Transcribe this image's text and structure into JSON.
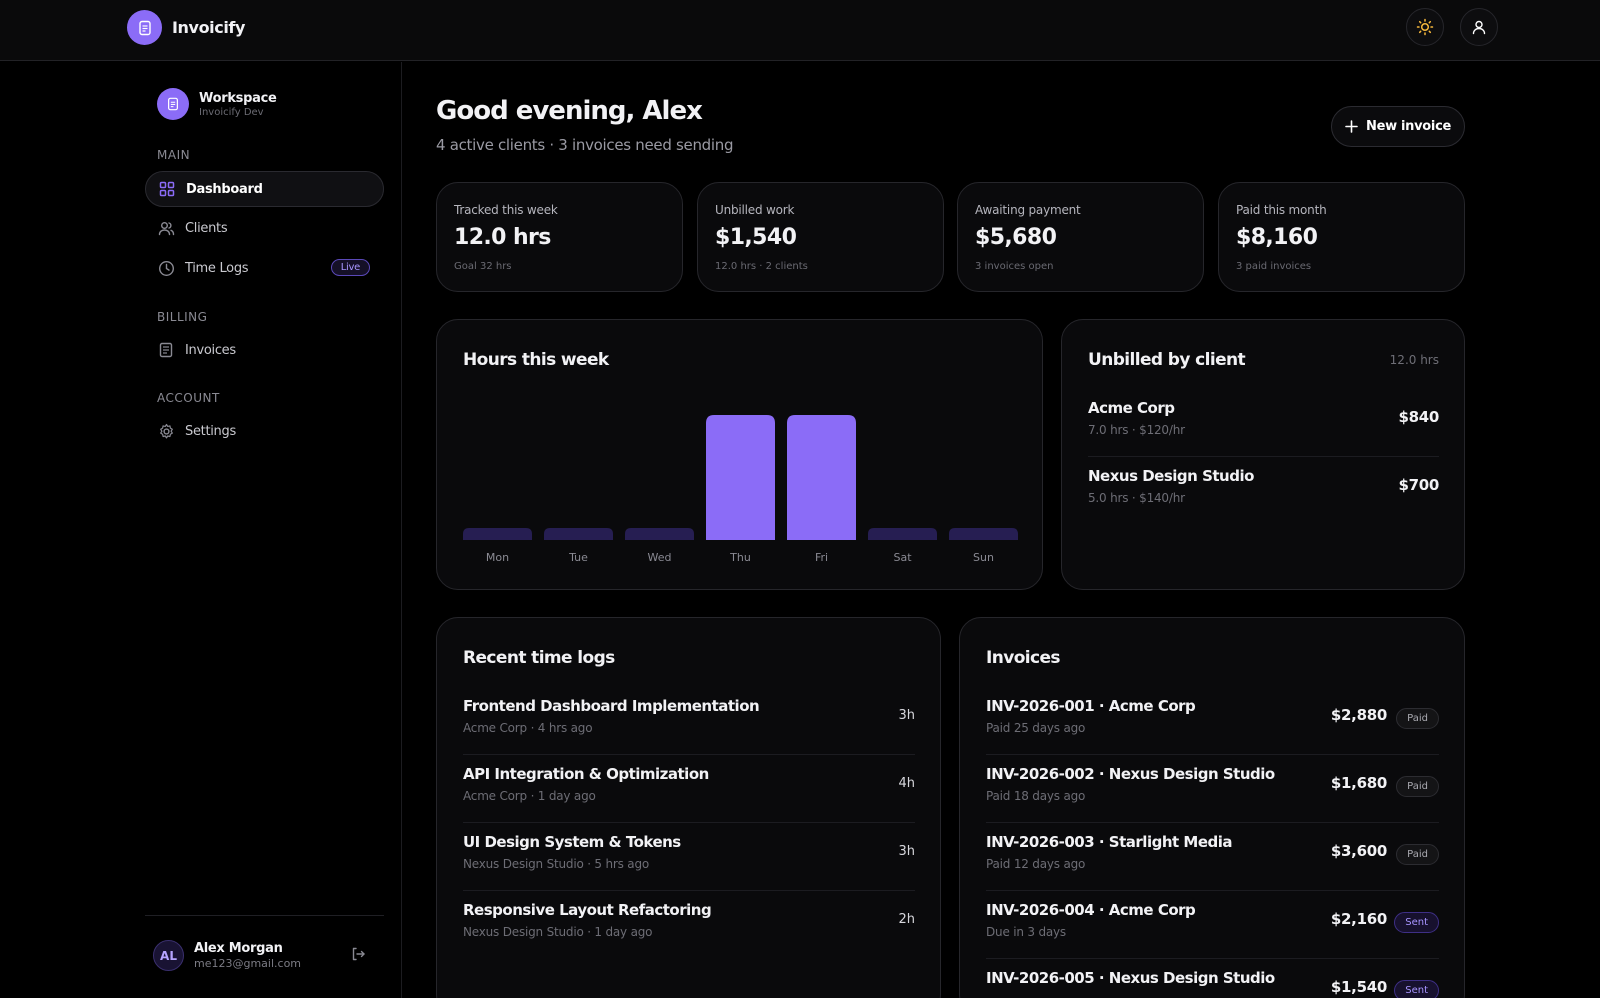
{
  "app": {
    "name": "Invoicify"
  },
  "colors": {
    "accent": "#8b6cf7",
    "accent_muted": "#261e52",
    "background": "#000000",
    "card": "#0a0a0c"
  },
  "sidebar": {
    "workspace_name": "Workspace",
    "workspace_sub": "Invoicify Dev",
    "sections": {
      "main": "MAIN",
      "billing": "BILLING",
      "account": "ACCOUNT"
    },
    "items": {
      "dashboard": "Dashboard",
      "clients": "Clients",
      "time_logs": "Time Logs",
      "time_logs_badge": "Live",
      "invoices": "Invoices",
      "settings": "Settings"
    },
    "user": {
      "initials": "AL",
      "name": "Alex Morgan",
      "email": "me123@gmail.com"
    }
  },
  "header": {
    "greeting": "Good evening, Alex",
    "subtitle": "4 active clients · 3 invoices need sending",
    "new_invoice_label": "New invoice"
  },
  "stats": [
    {
      "label": "Tracked this week",
      "value": "12.0 hrs",
      "sub": "Goal 32 hrs"
    },
    {
      "label": "Unbilled work",
      "value": "$1,540",
      "sub": "12.0 hrs · 2 clients"
    },
    {
      "label": "Awaiting payment",
      "value": "$5,680",
      "sub": "3 invoices open"
    },
    {
      "label": "Paid this month",
      "value": "$8,160",
      "sub": "3 paid invoices"
    }
  ],
  "hours_card": {
    "title": "Hours this week"
  },
  "chart_data": {
    "type": "bar",
    "categories": [
      "Mon",
      "Tue",
      "Wed",
      "Thu",
      "Fri",
      "Sat",
      "Sun"
    ],
    "values": [
      0,
      0,
      0,
      6,
      6,
      0,
      0
    ],
    "xlabel": "",
    "ylabel": ""
  },
  "unbilled": {
    "title": "Unbilled by client",
    "total": "12.0 hrs",
    "clients": [
      {
        "name": "Acme Corp",
        "detail": "7.0 hrs · $120/hr",
        "amount": "$840"
      },
      {
        "name": "Nexus Design Studio",
        "detail": "5.0 hrs · $140/hr",
        "amount": "$700"
      }
    ]
  },
  "time_logs": {
    "title": "Recent time logs",
    "items": [
      {
        "title": "Frontend Dashboard Implementation",
        "meta": "Acme Corp · 4 hrs ago",
        "hours": "3h"
      },
      {
        "title": "API Integration & Optimization",
        "meta": "Acme Corp · 1 day ago",
        "hours": "4h"
      },
      {
        "title": "UI Design System & Tokens",
        "meta": "Nexus Design Studio · 5 hrs ago",
        "hours": "3h"
      },
      {
        "title": "Responsive Layout Refactoring",
        "meta": "Nexus Design Studio · 1 day ago",
        "hours": "2h"
      }
    ]
  },
  "invoices": {
    "title": "Invoices",
    "items": [
      {
        "title": "INV-2026-001 · Acme Corp",
        "meta": "Paid 25 days ago",
        "amount": "$2,880",
        "status": "Paid"
      },
      {
        "title": "INV-2026-002 · Nexus Design Studio",
        "meta": "Paid 18 days ago",
        "amount": "$1,680",
        "status": "Paid"
      },
      {
        "title": "INV-2026-003 · Starlight Media",
        "meta": "Paid 12 days ago",
        "amount": "$3,600",
        "status": "Paid"
      },
      {
        "title": "INV-2026-004 · Acme Corp",
        "meta": "Due in 3 days",
        "amount": "$2,160",
        "status": "Sent"
      },
      {
        "title": "INV-2026-005 · Nexus Design Studio",
        "meta": "",
        "amount": "$1,540",
        "status": "Sent"
      }
    ]
  }
}
